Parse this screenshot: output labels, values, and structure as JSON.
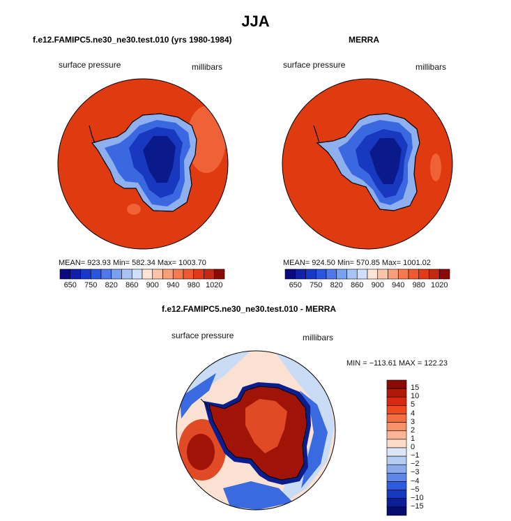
{
  "figure_title": "JJA",
  "panels": [
    {
      "title": "f.e12.FAMIPC5.ne30_ne30.test.010 (yrs 1980-1984)",
      "variable": "surface pressure",
      "units": "millibars",
      "stats": "MEAN= 923.93   Min= 582.34   Max= 1003.70"
    },
    {
      "title": "MERRA",
      "variable": "surface pressure",
      "units": "millibars",
      "stats": "MEAN= 924.50   Min= 570.85   Max= 1001.02"
    },
    {
      "title": "f.e12.FAMIPC5.ne30_ne30.test.010 - MERRA",
      "variable": "surface pressure",
      "units": "millibars",
      "stats": "MIN = −113.61  MAX = 122.23"
    }
  ],
  "colorbar_abs": {
    "labels": [
      "650",
      "750",
      "820",
      "860",
      "900",
      "940",
      "980",
      "1020"
    ],
    "colors": [
      "#0a0a80",
      "#1020a8",
      "#1838c8",
      "#2a55e0",
      "#5078e8",
      "#7aa0f0",
      "#a8c4f5",
      "#d0e0fa",
      "#fde5d6",
      "#fcc4a8",
      "#f9a07a",
      "#f57a50",
      "#ef5a30",
      "#e23a16",
      "#c42a10",
      "#8a0a08"
    ]
  },
  "colorbar_diff": {
    "labels": [
      "15",
      "10",
      "5",
      "4",
      "3",
      "2",
      "1",
      "0",
      "−1",
      "−2",
      "−3",
      "−4",
      "−5",
      "−10",
      "−15"
    ],
    "colors": [
      "#8a0a08",
      "#b01808",
      "#d82a10",
      "#ee4a20",
      "#f26e40",
      "#f69168",
      "#f9b596",
      "#fcdcc8",
      "#dbe6f7",
      "#b6cdf2",
      "#8aabec",
      "#5d86e6",
      "#2e5ce0",
      "#1838c0",
      "#0e1e98",
      "#070c70"
    ]
  },
  "map_colors": {
    "ocean_high": "#e03a10",
    "ocean_light": "#ef6238",
    "plateau": "#0a1a8a",
    "interior": "#1838c0",
    "slope": "#3a68e0",
    "edge": "#8fb0ef",
    "diff_neutral": "#fbe1d2",
    "diff_light_blue": "#c9dbf5",
    "diff_blue": "#3a6ae0",
    "diff_dark": "#0a1e90",
    "diff_red": "#e04a24",
    "diff_dark_red": "#a01408"
  }
}
